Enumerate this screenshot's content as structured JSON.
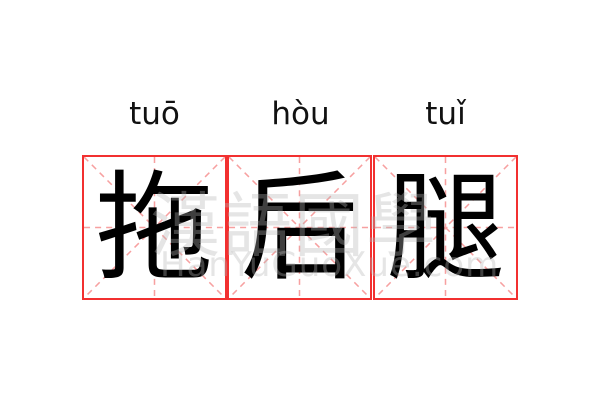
{
  "entries": [
    {
      "pinyin": "tuō",
      "char": "拖"
    },
    {
      "pinyin": "hòu",
      "char": "后"
    },
    {
      "pinyin": "tuǐ",
      "char": "腿"
    }
  ],
  "watermark": {
    "chinese": "漢語國學",
    "latin": "HanYuGuoXue.com"
  },
  "colors": {
    "border": "#f23030",
    "guide": "#f7a0a0",
    "text": "#000000"
  }
}
